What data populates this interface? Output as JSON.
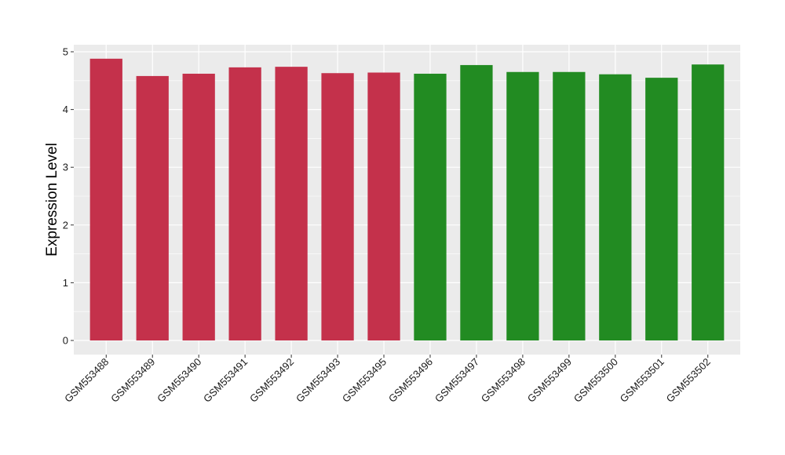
{
  "chart_data": {
    "type": "bar",
    "title": "",
    "xlabel": "",
    "ylabel": "Expression Level",
    "ylim": [
      0,
      5
    ],
    "yticks": [
      0,
      1,
      2,
      3,
      4,
      5
    ],
    "grid": true,
    "categories": [
      "GSM553488",
      "GSM553489",
      "GSM553490",
      "GSM553491",
      "GSM553492",
      "GSM553493",
      "GSM553495",
      "GSM553496",
      "GSM553497",
      "GSM553498",
      "GSM553499",
      "GSM553500",
      "GSM553501",
      "GSM553502"
    ],
    "values": [
      4.88,
      4.58,
      4.62,
      4.73,
      4.74,
      4.63,
      4.64,
      4.62,
      4.77,
      4.65,
      4.65,
      4.61,
      4.55,
      4.78
    ],
    "groups": [
      "red",
      "red",
      "red",
      "red",
      "red",
      "red",
      "red",
      "green",
      "green",
      "green",
      "green",
      "green",
      "green",
      "green"
    ],
    "colors": {
      "red": "#C4314B",
      "green": "#228B22",
      "panel": "#EBEBEB",
      "grid": "#FFFFFF"
    }
  }
}
